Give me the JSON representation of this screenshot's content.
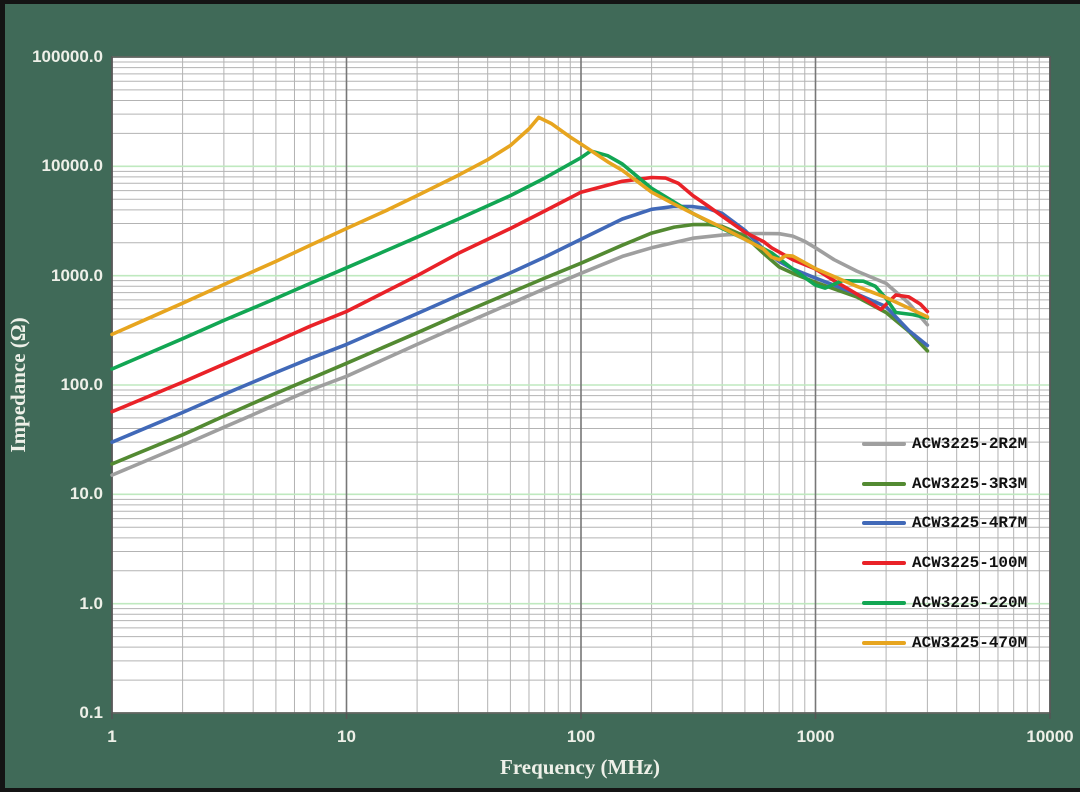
{
  "colors": {
    "background": "#406a58",
    "frame": "#141414",
    "plot_background": "#ffffff",
    "plot_border": "#555555",
    "grid_minor": "#b3b3b3",
    "grid_major_vertical": "#777777",
    "grid_major_horizontal": "#bfe9bf",
    "tick_label": "#eef0e8",
    "axis_title": "#eef0e8",
    "legend_text": "#111111"
  },
  "chart_data": {
    "type": "line",
    "title": "",
    "xlabel": "Frequency (MHz)",
    "ylabel": "Impedance (Ω)",
    "x_scale": "log",
    "y_scale": "log",
    "xlim": [
      1,
      10000
    ],
    "ylim": [
      0.1,
      100000
    ],
    "grid": true,
    "legend_position": "inside-right",
    "x_ticks": {
      "values": [
        1,
        10,
        100,
        1000,
        10000
      ],
      "labels": [
        "1",
        "10",
        "100",
        "1000",
        "10000"
      ]
    },
    "y_ticks": {
      "values": [
        100000,
        10000,
        1000,
        100,
        10,
        1,
        0.1
      ],
      "labels": [
        "100000.0",
        "10000.0",
        "1000.0",
        "100.0",
        "10.0",
        "1.0",
        "0.1"
      ]
    },
    "series": [
      {
        "name": "ACW3225-2R2M",
        "color": "#9f9f9f",
        "points": [
          [
            1,
            15
          ],
          [
            2,
            28
          ],
          [
            3,
            41
          ],
          [
            5,
            66
          ],
          [
            7,
            90
          ],
          [
            10,
            120
          ],
          [
            20,
            235
          ],
          [
            30,
            345
          ],
          [
            50,
            555
          ],
          [
            70,
            760
          ],
          [
            100,
            1050
          ],
          [
            150,
            1500
          ],
          [
            200,
            1800
          ],
          [
            300,
            2200
          ],
          [
            400,
            2350
          ],
          [
            500,
            2420
          ],
          [
            600,
            2430
          ],
          [
            700,
            2420
          ],
          [
            800,
            2300
          ],
          [
            900,
            2060
          ],
          [
            1000,
            1800
          ],
          [
            1200,
            1400
          ],
          [
            1500,
            1100
          ],
          [
            2000,
            850
          ],
          [
            2500,
            560
          ],
          [
            3000,
            355
          ]
        ]
      },
      {
        "name": "ACW3225-3R3M",
        "color": "#538a32",
        "points": [
          [
            1,
            19
          ],
          [
            2,
            35
          ],
          [
            3,
            52
          ],
          [
            5,
            84
          ],
          [
            7,
            114
          ],
          [
            10,
            158
          ],
          [
            20,
            300
          ],
          [
            30,
            440
          ],
          [
            50,
            700
          ],
          [
            70,
            950
          ],
          [
            100,
            1300
          ],
          [
            150,
            1900
          ],
          [
            200,
            2450
          ],
          [
            250,
            2780
          ],
          [
            300,
            2930
          ],
          [
            350,
            2940
          ],
          [
            400,
            2820
          ],
          [
            500,
            2300
          ],
          [
            600,
            1600
          ],
          [
            700,
            1200
          ],
          [
            800,
            1050
          ],
          [
            1000,
            870
          ],
          [
            1500,
            640
          ],
          [
            2000,
            460
          ],
          [
            2500,
            310
          ],
          [
            3000,
            205
          ]
        ]
      },
      {
        "name": "ACW3225-4R7M",
        "color": "#4169b8",
        "points": [
          [
            1,
            30
          ],
          [
            2,
            56
          ],
          [
            3,
            82
          ],
          [
            5,
            130
          ],
          [
            7,
            175
          ],
          [
            10,
            235
          ],
          [
            20,
            450
          ],
          [
            30,
            660
          ],
          [
            50,
            1060
          ],
          [
            70,
            1480
          ],
          [
            100,
            2150
          ],
          [
            150,
            3300
          ],
          [
            200,
            4050
          ],
          [
            250,
            4300
          ],
          [
            300,
            4280
          ],
          [
            350,
            4100
          ],
          [
            400,
            3700
          ],
          [
            500,
            2600
          ],
          [
            600,
            1750
          ],
          [
            700,
            1350
          ],
          [
            800,
            1150
          ],
          [
            1000,
            950
          ],
          [
            1500,
            680
          ],
          [
            2000,
            520
          ],
          [
            2500,
            315
          ],
          [
            3000,
            230
          ]
        ]
      },
      {
        "name": "ACW3225-100M",
        "color": "#e92228",
        "points": [
          [
            1,
            57
          ],
          [
            2,
            106
          ],
          [
            3,
            155
          ],
          [
            5,
            250
          ],
          [
            7,
            345
          ],
          [
            10,
            470
          ],
          [
            20,
            1000
          ],
          [
            30,
            1600
          ],
          [
            50,
            2700
          ],
          [
            70,
            3900
          ],
          [
            100,
            5800
          ],
          [
            150,
            7300
          ],
          [
            200,
            7900
          ],
          [
            230,
            7800
          ],
          [
            260,
            7000
          ],
          [
            300,
            5400
          ],
          [
            350,
            4300
          ],
          [
            400,
            3500
          ],
          [
            500,
            2500
          ],
          [
            600,
            2050
          ],
          [
            650,
            1800
          ],
          [
            800,
            1400
          ],
          [
            1000,
            1150
          ],
          [
            1200,
            900
          ],
          [
            1500,
            680
          ],
          [
            1900,
            490
          ],
          [
            2200,
            665
          ],
          [
            2500,
            640
          ],
          [
            2800,
            550
          ],
          [
            3000,
            470
          ]
        ]
      },
      {
        "name": "ACW3225-220M",
        "color": "#12a653",
        "points": [
          [
            1,
            140
          ],
          [
            2,
            265
          ],
          [
            3,
            390
          ],
          [
            5,
            620
          ],
          [
            7,
            850
          ],
          [
            10,
            1180
          ],
          [
            20,
            2250
          ],
          [
            30,
            3300
          ],
          [
            50,
            5400
          ],
          [
            70,
            7800
          ],
          [
            100,
            12000
          ],
          [
            110,
            13800
          ],
          [
            130,
            12500
          ],
          [
            150,
            10500
          ],
          [
            200,
            6300
          ],
          [
            250,
            4700
          ],
          [
            300,
            3700
          ],
          [
            400,
            2700
          ],
          [
            500,
            2150
          ],
          [
            650,
            1620
          ],
          [
            800,
            1150
          ],
          [
            1000,
            820
          ],
          [
            1100,
            770
          ],
          [
            1300,
            900
          ],
          [
            1600,
            890
          ],
          [
            1800,
            800
          ],
          [
            2000,
            620
          ],
          [
            2200,
            460
          ],
          [
            2600,
            440
          ],
          [
            3000,
            410
          ]
        ]
      },
      {
        "name": "ACW3225-470M",
        "color": "#e7a51f",
        "points": [
          [
            1,
            290
          ],
          [
            2,
            560
          ],
          [
            3,
            830
          ],
          [
            5,
            1350
          ],
          [
            7,
            1900
          ],
          [
            10,
            2700
          ],
          [
            15,
            4000
          ],
          [
            20,
            5400
          ],
          [
            30,
            8300
          ],
          [
            40,
            11500
          ],
          [
            50,
            15500
          ],
          [
            60,
            22000
          ],
          [
            66,
            28000
          ],
          [
            75,
            24500
          ],
          [
            90,
            18500
          ],
          [
            100,
            16000
          ],
          [
            130,
            11000
          ],
          [
            150,
            9200
          ],
          [
            200,
            5800
          ],
          [
            250,
            4500
          ],
          [
            300,
            3700
          ],
          [
            400,
            2750
          ],
          [
            500,
            2150
          ],
          [
            600,
            1750
          ],
          [
            650,
            1480
          ],
          [
            700,
            1400
          ],
          [
            750,
            1530
          ],
          [
            800,
            1510
          ],
          [
            1000,
            1160
          ],
          [
            1500,
            800
          ],
          [
            2000,
            630
          ],
          [
            2500,
            505
          ],
          [
            3000,
            420
          ]
        ]
      }
    ]
  }
}
